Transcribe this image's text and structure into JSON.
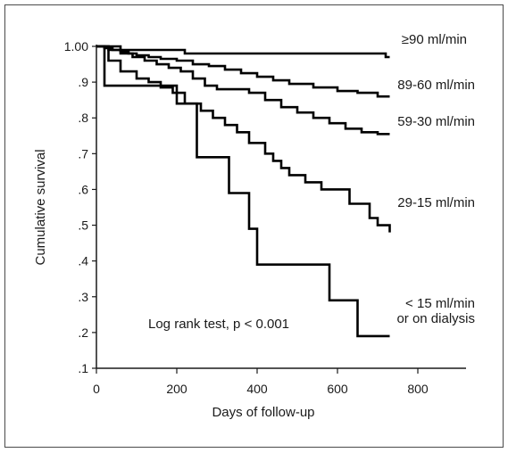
{
  "chart_data": {
    "type": "line",
    "title": "",
    "xlabel": "Days of follow-up",
    "ylabel": "Cumulative survival",
    "xlim": [
      0,
      920
    ],
    "ylim": [
      0.1,
      1.0
    ],
    "x_ticks": [
      0,
      200,
      400,
      600,
      800
    ],
    "x_tick_labels": [
      "0",
      "200",
      "400",
      "600",
      "800"
    ],
    "y_ticks": [
      1.0,
      0.9,
      0.8,
      0.7,
      0.6,
      0.5,
      0.4,
      0.3,
      0.2,
      0.1
    ],
    "y_tick_labels": [
      "1.00",
      ".9",
      ".8",
      ".7",
      ".6",
      ".5",
      ".4",
      ".3",
      ".2",
      ".1"
    ],
    "grid": false,
    "annotation": "Log rank test, p < 0.001",
    "series": [
      {
        "name": "≥90 ml/min",
        "color": "#000000",
        "label_lines": [
          "≥90 ml/min"
        ],
        "x": [
          0,
          30,
          60,
          220,
          720,
          730
        ],
        "y": [
          1.0,
          1.0,
          0.99,
          0.98,
          0.97,
          0.97
        ]
      },
      {
        "name": "89-60 ml/min",
        "color": "#000000",
        "label_lines": [
          "89-60 ml/min"
        ],
        "x": [
          0,
          20,
          40,
          60,
          80,
          100,
          130,
          160,
          200,
          240,
          280,
          320,
          360,
          400,
          440,
          480,
          540,
          600,
          650,
          700,
          730
        ],
        "y": [
          1.0,
          0.995,
          0.99,
          0.985,
          0.98,
          0.975,
          0.97,
          0.965,
          0.96,
          0.95,
          0.945,
          0.935,
          0.925,
          0.915,
          0.905,
          0.895,
          0.885,
          0.875,
          0.87,
          0.86,
          0.86
        ]
      },
      {
        "name": "59-30 ml/min",
        "color": "#000000",
        "label_lines": [
          "59-30 ml/min"
        ],
        "x": [
          0,
          30,
          60,
          90,
          120,
          150,
          180,
          210,
          240,
          270,
          300,
          340,
          380,
          420,
          460,
          500,
          540,
          580,
          620,
          660,
          700,
          730
        ],
        "y": [
          1.0,
          0.99,
          0.98,
          0.97,
          0.96,
          0.95,
          0.94,
          0.93,
          0.91,
          0.89,
          0.88,
          0.88,
          0.87,
          0.85,
          0.83,
          0.815,
          0.8,
          0.785,
          0.77,
          0.76,
          0.755,
          0.755
        ]
      },
      {
        "name": "29-15 ml/min",
        "color": "#000000",
        "label_lines": [
          "29-15 ml/min"
        ],
        "x": [
          0,
          30,
          60,
          100,
          130,
          160,
          190,
          220,
          260,
          290,
          320,
          350,
          380,
          420,
          440,
          460,
          480,
          520,
          560,
          600,
          630,
          680,
          700,
          730
        ],
        "y": [
          1.0,
          0.96,
          0.93,
          0.91,
          0.9,
          0.885,
          0.87,
          0.84,
          0.82,
          0.8,
          0.78,
          0.76,
          0.73,
          0.7,
          0.68,
          0.66,
          0.64,
          0.62,
          0.6,
          0.6,
          0.56,
          0.52,
          0.5,
          0.48
        ]
      },
      {
        "name": "< 15 ml/min or on dialysis",
        "color": "#000000",
        "label_lines": [
          "< 15 ml/min",
          "or on dialysis"
        ],
        "x": [
          0,
          20,
          100,
          160,
          200,
          250,
          330,
          380,
          400,
          580,
          650,
          730
        ],
        "y": [
          1.0,
          0.89,
          0.89,
          0.89,
          0.84,
          0.69,
          0.59,
          0.49,
          0.39,
          0.29,
          0.19,
          0.19
        ]
      }
    ]
  }
}
